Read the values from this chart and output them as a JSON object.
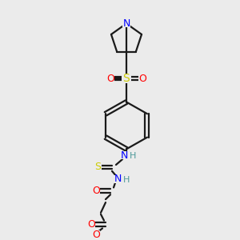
{
  "background_color": "#ebebeb",
  "bond_color": "#1a1a1a",
  "atom_colors": {
    "N": "#0000ff",
    "O": "#ff0000",
    "S_sulfonyl": "#cccc00",
    "S_thio": "#cccc00",
    "H": "#4d9999",
    "C": "#1a1a1a"
  },
  "figsize": [
    3.0,
    3.0
  ],
  "dpi": 100
}
